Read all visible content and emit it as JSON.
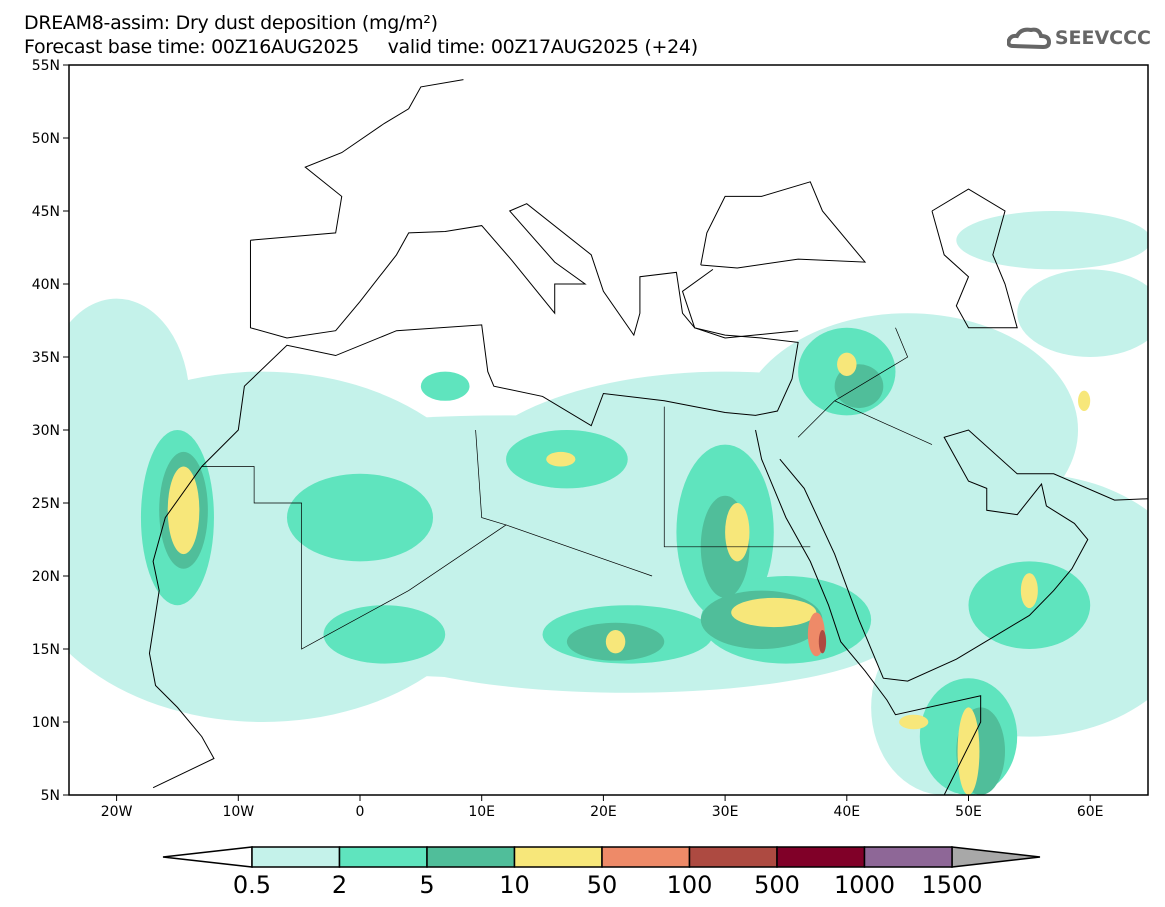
{
  "header": {
    "title": "DREAM8-assim: Dry dust deposition (mg/m²)",
    "subtitle": "Forecast base time: 00Z16AUG2025     valid time: 00Z17AUG2025 (+24)",
    "logo_text": "SEEVCCC"
  },
  "map": {
    "lat_labels": [
      "55N",
      "50N",
      "45N",
      "40N",
      "35N",
      "30N",
      "25N",
      "20N",
      "15N",
      "10N",
      "5N"
    ],
    "lat_values": [
      55,
      50,
      45,
      40,
      35,
      30,
      25,
      20,
      15,
      10,
      5
    ],
    "lon_labels": [
      "20W",
      "10W",
      "0",
      "10E",
      "20E",
      "30E",
      "40E",
      "50E",
      "60E"
    ],
    "lon_values": [
      -20,
      -10,
      0,
      10,
      20,
      30,
      40,
      50,
      60
    ]
  },
  "colorbar": {
    "labels": [
      "0.5",
      "2",
      "5",
      "10",
      "50",
      "100",
      "500",
      "1000",
      "1500"
    ],
    "colors": [
      "#c4f2ea",
      "#5fe4be",
      "#50be9a",
      "#f7e77a",
      "#ee8a68",
      "#ad4a41",
      "#800028",
      "#8e6797"
    ],
    "under_color": "#ffffff",
    "over_color": "#a8a8a8"
  }
}
